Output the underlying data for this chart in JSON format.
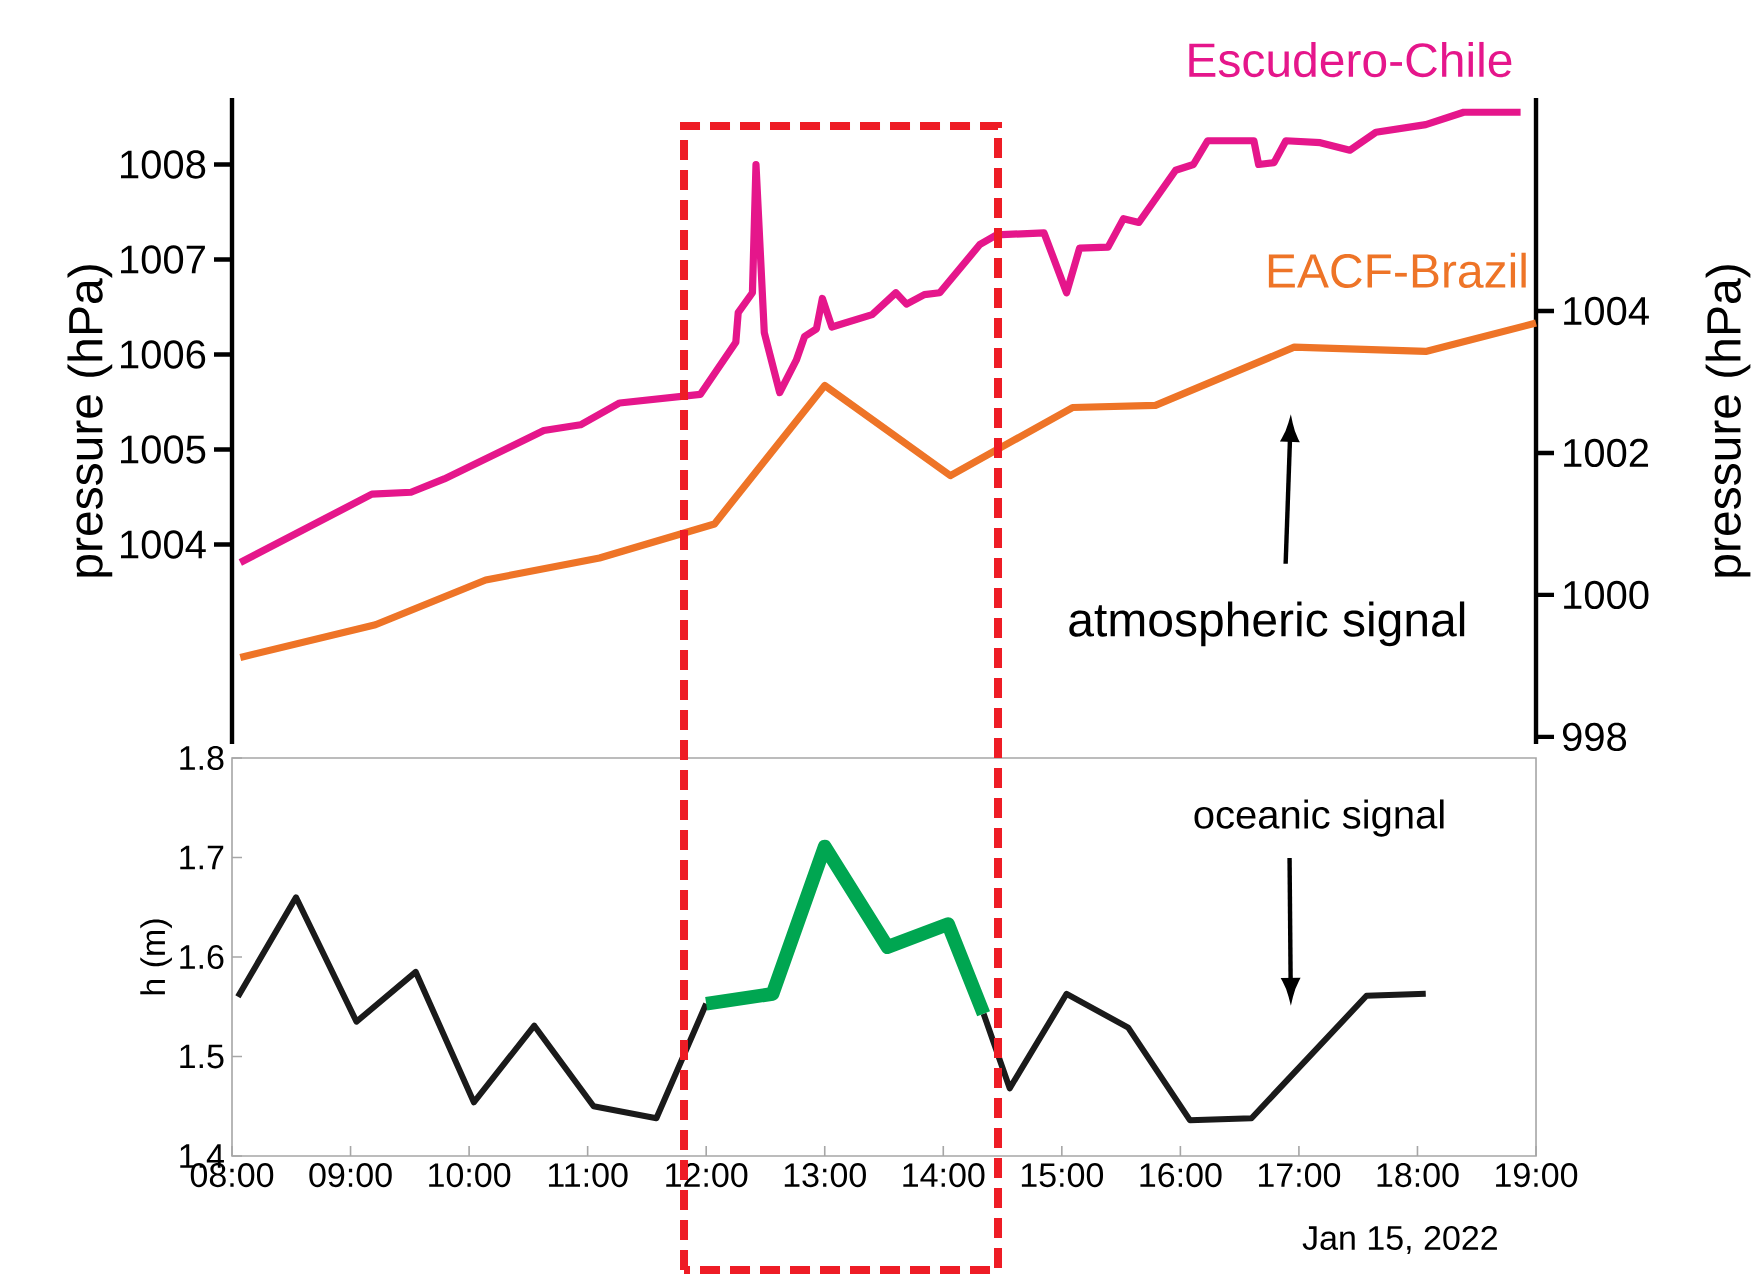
{
  "chart_data": [
    {
      "type": "line",
      "xlim": [
        8,
        19
      ],
      "tick_labels": "y",
      "ylim": [
        1001.9,
        1008.7
      ],
      "yticks": [
        1004,
        1005,
        1006,
        1007,
        1008
      ],
      "ylabel": "pressure (hPa)",
      "y2lim": [
        997.9,
        1007.0
      ],
      "y2ticks": [
        998,
        1000,
        1002,
        1004
      ],
      "y2label": "pressure (hPa)",
      "series": [
        {
          "name": "Escudero-Chile",
          "color": "#e5168b",
          "x": [
            8.07,
            9.18,
            9.51,
            9.79,
            10.63,
            10.94,
            11.27,
            11.95,
            12.25,
            12.27,
            12.39,
            12.42,
            12.49,
            12.62,
            12.76,
            12.83,
            12.93,
            12.98,
            13.06,
            13.4,
            13.6,
            13.69,
            13.84,
            13.97,
            14.31,
            14.45,
            14.85,
            15.04,
            15.15,
            15.39,
            15.52,
            15.65,
            15.96,
            16.11,
            16.23,
            16.62,
            16.66,
            16.79,
            16.89,
            17.18,
            17.43,
            17.65,
            18.07,
            18.39,
            18.87
          ],
          "values": [
            1003.81,
            1004.53,
            1004.55,
            1004.69,
            1005.2,
            1005.26,
            1005.49,
            1005.58,
            1006.13,
            1006.44,
            1006.65,
            1008.0,
            1006.23,
            1005.6,
            1005.94,
            1006.19,
            1006.27,
            1006.59,
            1006.29,
            1006.42,
            1006.65,
            1006.53,
            1006.63,
            1006.65,
            1007.16,
            1007.26,
            1007.28,
            1006.65,
            1007.12,
            1007.13,
            1007.43,
            1007.39,
            1007.94,
            1008.0,
            1008.25,
            1008.25,
            1008.0,
            1008.02,
            1008.25,
            1008.23,
            1008.15,
            1008.34,
            1008.42,
            1008.55,
            1008.55
          ]
        },
        {
          "name": "EACF-Brazil",
          "color": "#ee7427",
          "axis": "y2",
          "x": [
            8.07,
            9.21,
            10.14,
            11.1,
            12.07,
            13.0,
            14.06,
            15.09,
            15.79,
            16.96,
            18.07,
            19.0
          ],
          "values": [
            999.12,
            999.58,
            1000.21,
            1000.52,
            1001.0,
            1002.95,
            1001.68,
            1002.64,
            1002.67,
            1003.49,
            1003.43,
            1003.83
          ]
        }
      ],
      "annotations": [
        "atmospheric signal"
      ]
    },
    {
      "type": "line",
      "xlim": [
        8,
        19
      ],
      "ylim": [
        1.4,
        1.8
      ],
      "yticks": [
        1.4,
        1.5,
        1.6,
        1.7,
        1.8
      ],
      "ylabel": "h (m)",
      "xticks": [
        {
          "value": 8,
          "label": "08:00"
        },
        {
          "value": 9,
          "label": "09:00"
        },
        {
          "value": 10,
          "label": "10:00"
        },
        {
          "value": 11,
          "label": "11:00"
        },
        {
          "value": 12,
          "label": "12:00"
        },
        {
          "value": 13,
          "label": "13:00"
        },
        {
          "value": 14,
          "label": "14:00"
        },
        {
          "value": 15,
          "label": "15:00"
        },
        {
          "value": 16,
          "label": "16:00"
        },
        {
          "value": 17,
          "label": "17:00"
        },
        {
          "value": 18,
          "label": "18:00"
        },
        {
          "value": 19,
          "label": "19:00"
        }
      ],
      "series": [
        {
          "color": "#1a1a1a",
          "x": [
            8.05,
            8.54,
            9.05,
            9.55,
            10.04,
            10.55,
            11.05,
            11.58,
            12.0,
            13.0,
            14.34,
            14.56,
            15.04,
            15.56,
            16.08,
            16.6,
            17.57,
            18.07
          ],
          "values": [
            1.56,
            1.66,
            1.535,
            1.585,
            1.454,
            1.531,
            1.45,
            1.438,
            1.553,
            null,
            1.543,
            1.468,
            1.563,
            1.529,
            1.436,
            1.438,
            1.561,
            1.563
          ]
        },
        {
          "color": "#00a651",
          "x": [
            12.0,
            12.56,
            13.0,
            13.53,
            14.04,
            14.34
          ],
          "values": [
            1.553,
            1.563,
            1.711,
            1.61,
            1.633,
            1.543
          ]
        }
      ],
      "annotations": [
        "oceanic signal",
        "Jan 15, 2022"
      ]
    }
  ]
}
